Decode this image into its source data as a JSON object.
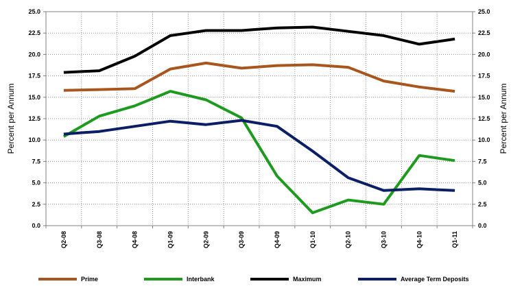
{
  "chart_data": {
    "type": "line",
    "title": "",
    "xlabel": "",
    "ylabel": "Percent per Annum",
    "ylabel_right": "Percent per Annum",
    "ylim": [
      0,
      25
    ],
    "yticks": [
      "0.0",
      "2.5",
      "5.0",
      "7.5",
      "10.0",
      "12.5",
      "15.0",
      "17.5",
      "20.0",
      "22.5",
      "25.0"
    ],
    "grid": true,
    "legend_position": "bottom",
    "categories": [
      "Q2-08",
      "Q3-08",
      "Q4-08",
      "Q1-09",
      "Q2-09",
      "Q3-09",
      "Q4-09",
      "Q1-10",
      "Q2-10",
      "Q3-10",
      "Q4-10",
      "Q1-11"
    ],
    "series": [
      {
        "name": "Prime",
        "color": "#a8561e",
        "values": [
          15.8,
          15.9,
          16.0,
          18.3,
          19.0,
          18.4,
          18.7,
          18.8,
          18.5,
          16.9,
          16.2,
          15.7
        ]
      },
      {
        "name": "Interbank",
        "color": "#1e9a1e",
        "values": [
          10.4,
          12.8,
          14.0,
          15.7,
          14.7,
          12.6,
          5.8,
          1.5,
          3.0,
          2.5,
          8.2,
          7.6
        ]
      },
      {
        "name": "Maximum",
        "color": "#000000",
        "values": [
          17.9,
          18.1,
          19.8,
          22.2,
          22.8,
          22.8,
          23.1,
          23.2,
          22.7,
          22.2,
          21.2,
          21.8
        ]
      },
      {
        "name": "Average Term Deposits",
        "color": "#0b1e66",
        "values": [
          10.7,
          11.0,
          11.6,
          12.2,
          11.8,
          12.3,
          11.6,
          8.7,
          5.6,
          4.1,
          4.3,
          4.1
        ]
      }
    ]
  }
}
